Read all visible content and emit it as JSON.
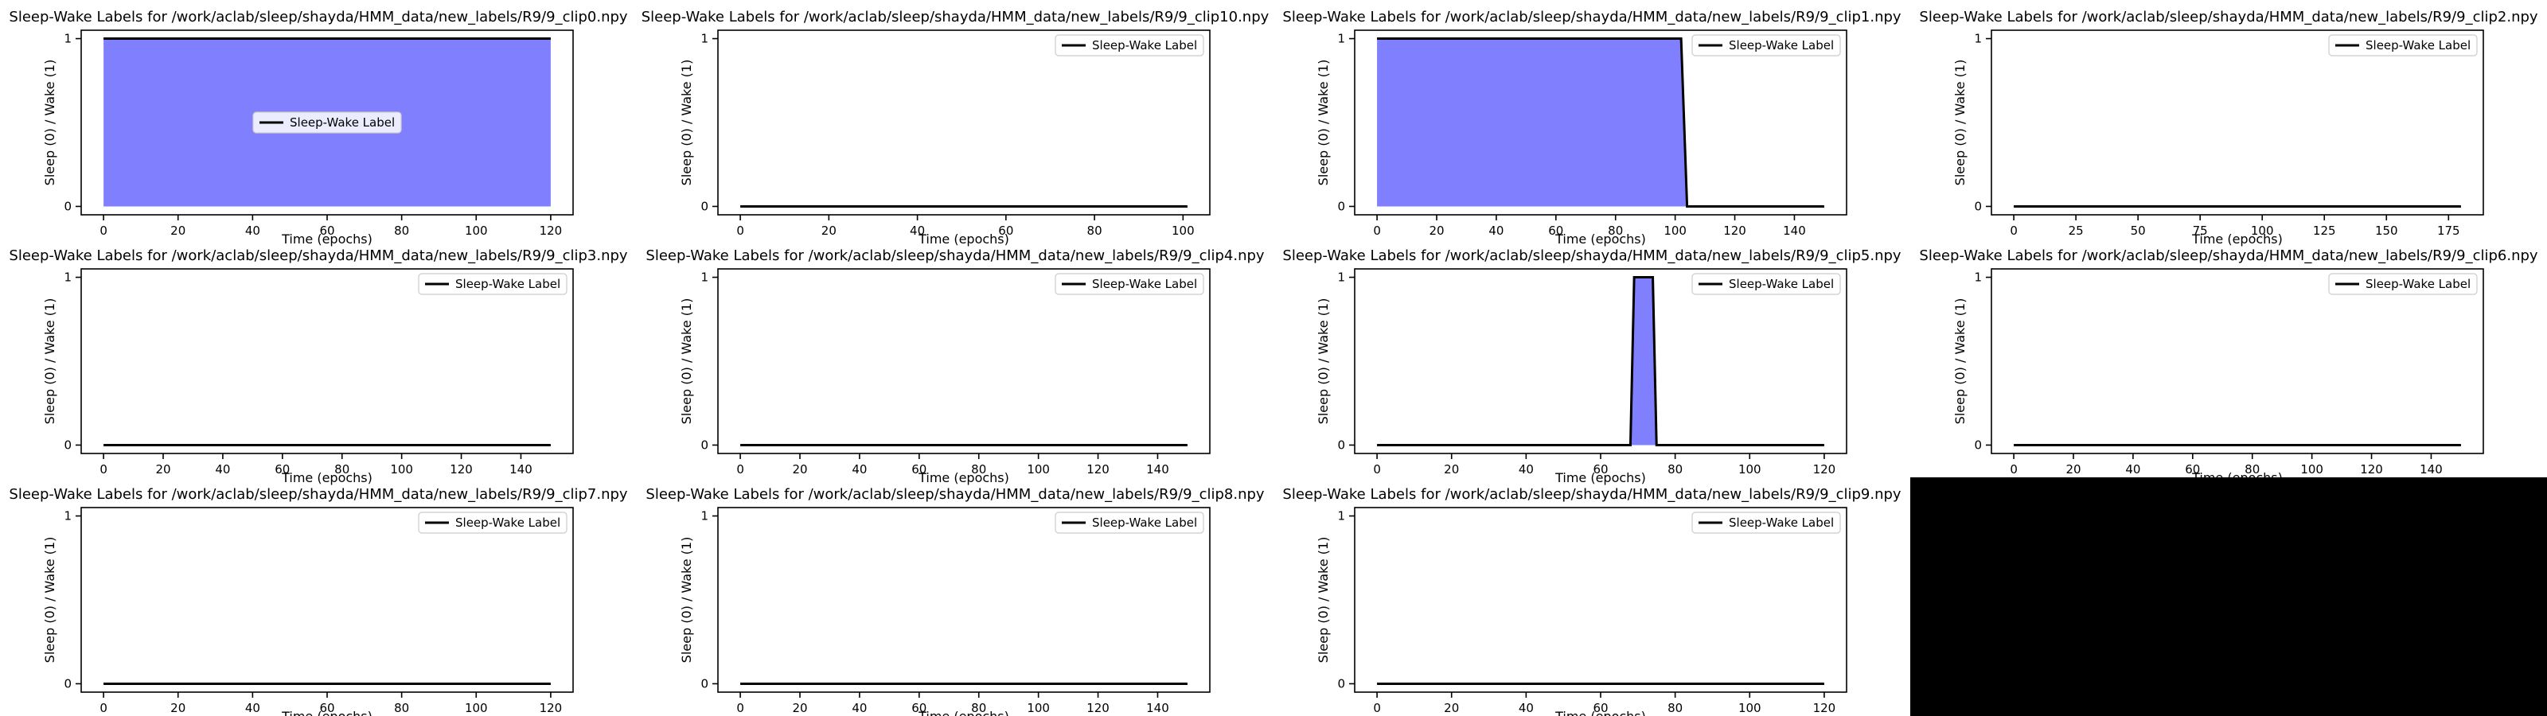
{
  "figure": {
    "empty_cell_color": "#000000",
    "fill_color": "#8080ff",
    "line_color": "#000000"
  },
  "chart_data": [
    {
      "type": "area",
      "title": "Sleep-Wake Labels for /work/aclab/sleep/shayda/HMM_data/new_labels/R9/9_clip0.npy",
      "xlabel": "Time (epochs)",
      "ylabel": "Sleep (0) / Wake (1)",
      "x": [
        0,
        120
      ],
      "y": [
        1,
        1
      ],
      "xlim": [
        -6,
        126
      ],
      "ylim": [
        -0.05,
        1.05
      ],
      "xticks": [
        0,
        20,
        40,
        60,
        80,
        100,
        120
      ],
      "yticks": [
        0,
        1
      ],
      "legend": {
        "label": "Sleep-Wake Label",
        "loc": "center"
      }
    },
    {
      "type": "area",
      "title": "Sleep-Wake Labels for /work/aclab/sleep/shayda/HMM_data/new_labels/R9/9_clip10.npy",
      "xlabel": "Time (epochs)",
      "ylabel": "Sleep (0) / Wake (1)",
      "x": [
        0,
        101
      ],
      "y": [
        0,
        0
      ],
      "xlim": [
        -5.05,
        106.05
      ],
      "ylim": [
        -0.05,
        1.05
      ],
      "xticks": [
        0,
        20,
        40,
        60,
        80,
        100
      ],
      "yticks": [
        0,
        1
      ],
      "legend": {
        "label": "Sleep-Wake Label",
        "loc": "upper right"
      }
    },
    {
      "type": "area",
      "title": "Sleep-Wake Labels for /work/aclab/sleep/shayda/HMM_data/new_labels/R9/9_clip1.npy",
      "xlabel": "Time (epochs)",
      "ylabel": "Sleep (0) / Wake (1)",
      "x": [
        0,
        102,
        104,
        150
      ],
      "y": [
        1,
        1,
        0,
        0
      ],
      "xlim": [
        -7.5,
        157.5
      ],
      "ylim": [
        -0.05,
        1.05
      ],
      "xticks": [
        0,
        20,
        40,
        60,
        80,
        100,
        120,
        140
      ],
      "yticks": [
        0,
        1
      ],
      "legend": {
        "label": "Sleep-Wake Label",
        "loc": "upper right"
      }
    },
    {
      "type": "area",
      "title": "Sleep-Wake Labels for /work/aclab/sleep/shayda/HMM_data/new_labels/R9/9_clip2.npy",
      "xlabel": "Time (epochs)",
      "ylabel": "Sleep (0) / Wake (1)",
      "x": [
        0,
        180
      ],
      "y": [
        0,
        0
      ],
      "xlim": [
        -9,
        189
      ],
      "ylim": [
        -0.05,
        1.05
      ],
      "xticks": [
        0,
        25,
        50,
        75,
        100,
        125,
        150,
        175
      ],
      "yticks": [
        0,
        1
      ],
      "legend": {
        "label": "Sleep-Wake Label",
        "loc": "upper right"
      }
    },
    {
      "type": "area",
      "title": "Sleep-Wake Labels for /work/aclab/sleep/shayda/HMM_data/new_labels/R9/9_clip3.npy",
      "xlabel": "Time (epochs)",
      "ylabel": "Sleep (0) / Wake (1)",
      "x": [
        0,
        150
      ],
      "y": [
        0,
        0
      ],
      "xlim": [
        -7.5,
        157.5
      ],
      "ylim": [
        -0.05,
        1.05
      ],
      "xticks": [
        0,
        20,
        40,
        60,
        80,
        100,
        120,
        140
      ],
      "yticks": [
        0,
        1
      ],
      "legend": {
        "label": "Sleep-Wake Label",
        "loc": "upper right"
      }
    },
    {
      "type": "area",
      "title": "Sleep-Wake Labels for /work/aclab/sleep/shayda/HMM_data/new_labels/R9/9_clip4.npy",
      "xlabel": "Time (epochs)",
      "ylabel": "Sleep (0) / Wake (1)",
      "x": [
        0,
        150
      ],
      "y": [
        0,
        0
      ],
      "xlim": [
        -7.5,
        157.5
      ],
      "ylim": [
        -0.05,
        1.05
      ],
      "xticks": [
        0,
        20,
        40,
        60,
        80,
        100,
        120,
        140
      ],
      "yticks": [
        0,
        1
      ],
      "legend": {
        "label": "Sleep-Wake Label",
        "loc": "upper right"
      }
    },
    {
      "type": "area",
      "title": "Sleep-Wake Labels for /work/aclab/sleep/shayda/HMM_data/new_labels/R9/9_clip5.npy",
      "xlabel": "Time (epochs)",
      "ylabel": "Sleep (0) / Wake (1)",
      "x": [
        0,
        68,
        69,
        74,
        75,
        120
      ],
      "y": [
        0,
        0,
        1,
        1,
        0,
        0
      ],
      "xlim": [
        -6,
        126
      ],
      "ylim": [
        -0.05,
        1.05
      ],
      "xticks": [
        0,
        20,
        40,
        60,
        80,
        100,
        120
      ],
      "yticks": [
        0,
        1
      ],
      "legend": {
        "label": "Sleep-Wake Label",
        "loc": "upper right"
      }
    },
    {
      "type": "area",
      "title": "Sleep-Wake Labels for /work/aclab/sleep/shayda/HMM_data/new_labels/R9/9_clip6.npy",
      "xlabel": "Time (epochs)",
      "ylabel": "Sleep (0) / Wake (1)",
      "x": [
        0,
        150
      ],
      "y": [
        0,
        0
      ],
      "xlim": [
        -7.5,
        157.5
      ],
      "ylim": [
        -0.05,
        1.05
      ],
      "xticks": [
        0,
        20,
        40,
        60,
        80,
        100,
        120,
        140
      ],
      "yticks": [
        0,
        1
      ],
      "legend": {
        "label": "Sleep-Wake Label",
        "loc": "upper right"
      }
    },
    {
      "type": "area",
      "title": "Sleep-Wake Labels for /work/aclab/sleep/shayda/HMM_data/new_labels/R9/9_clip7.npy",
      "xlabel": "Time (epochs)",
      "ylabel": "Sleep (0) / Wake (1)",
      "x": [
        0,
        120
      ],
      "y": [
        0,
        0
      ],
      "xlim": [
        -6,
        126
      ],
      "ylim": [
        -0.05,
        1.05
      ],
      "xticks": [
        0,
        20,
        40,
        60,
        80,
        100,
        120
      ],
      "yticks": [
        0,
        1
      ],
      "legend": {
        "label": "Sleep-Wake Label",
        "loc": "upper right"
      }
    },
    {
      "type": "area",
      "title": "Sleep-Wake Labels for /work/aclab/sleep/shayda/HMM_data/new_labels/R9/9_clip8.npy",
      "xlabel": "Time (epochs)",
      "ylabel": "Sleep (0) / Wake (1)",
      "x": [
        0,
        150
      ],
      "y": [
        0,
        0
      ],
      "xlim": [
        -7.5,
        157.5
      ],
      "ylim": [
        -0.05,
        1.05
      ],
      "xticks": [
        0,
        20,
        40,
        60,
        80,
        100,
        120,
        140
      ],
      "yticks": [
        0,
        1
      ],
      "legend": {
        "label": "Sleep-Wake Label",
        "loc": "upper right"
      }
    },
    {
      "type": "area",
      "title": "Sleep-Wake Labels for /work/aclab/sleep/shayda/HMM_data/new_labels/R9/9_clip9.npy",
      "xlabel": "Time (epochs)",
      "ylabel": "Sleep (0) / Wake (1)",
      "x": [
        0,
        120
      ],
      "y": [
        0,
        0
      ],
      "xlim": [
        -6,
        126
      ],
      "ylim": [
        -0.05,
        1.05
      ],
      "xticks": [
        0,
        20,
        40,
        60,
        80,
        100,
        120
      ],
      "yticks": [
        0,
        1
      ],
      "legend": {
        "label": "Sleep-Wake Label",
        "loc": "upper right"
      }
    }
  ]
}
